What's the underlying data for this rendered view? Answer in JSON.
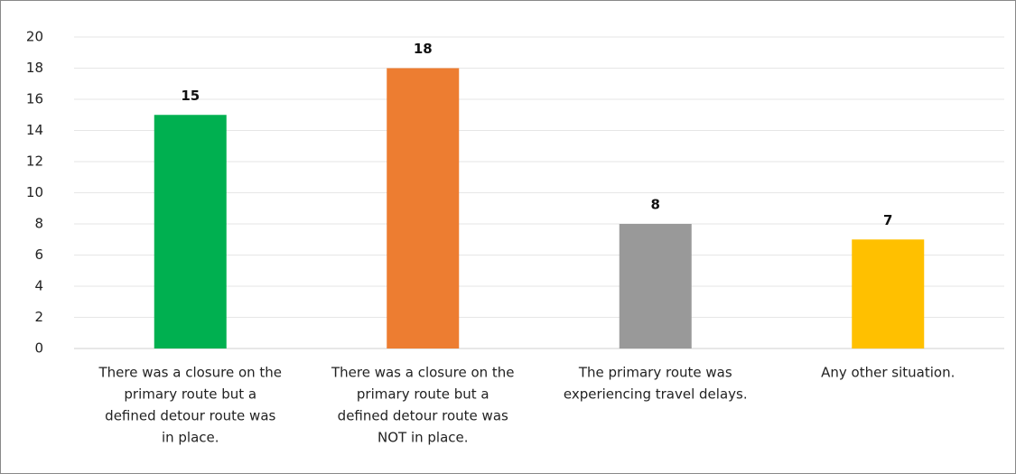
{
  "chart_data": {
    "type": "bar",
    "categories": [
      [
        "There was a closure on the",
        "primary route but a",
        "defined detour route was",
        "in place."
      ],
      [
        "There was a closure on the",
        "primary route but a",
        "defined detour route was",
        "NOT in place."
      ],
      [
        "The primary route was",
        "experiencing travel delays."
      ],
      [
        "Any other situation."
      ]
    ],
    "values": [
      15,
      18,
      8,
      7
    ],
    "colors": [
      "#00b050",
      "#ed7d31",
      "#999999",
      "#ffc000"
    ],
    "ylim": [
      0,
      20
    ],
    "yticks": [
      0,
      2,
      4,
      6,
      8,
      10,
      12,
      14,
      16,
      18,
      20
    ],
    "grid": true
  }
}
